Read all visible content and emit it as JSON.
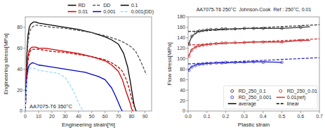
{
  "chart_data": [
    {
      "type": "line",
      "annotation": "AA7075-T6 350°C",
      "xlabel": "Engineering strain[%]",
      "ylabel": "Engineering stress[MPa]",
      "xlim": [
        0,
        95
      ],
      "ylim": [
        0,
        90
      ],
      "xticks": [
        0,
        10,
        20,
        30,
        40,
        50,
        60,
        70,
        80,
        90
      ],
      "yticks": [
        0,
        20,
        40,
        60,
        80
      ],
      "grid": false,
      "legend": "upper right",
      "series": [
        {
          "color": "#000000",
          "line_style": "solid",
          "x": [
            0,
            1,
            2,
            3,
            4,
            5,
            6,
            7,
            8,
            10,
            15,
            20,
            30,
            40,
            50,
            60,
            65,
            70,
            74,
            77,
            79,
            81,
            82,
            83,
            83.5
          ],
          "values": [
            0,
            50,
            72,
            80,
            83,
            84,
            85,
            85,
            85,
            84,
            83,
            82,
            80,
            78,
            75,
            71,
            68,
            64,
            55,
            42,
            28,
            12,
            5,
            1,
            0
          ]
        },
        {
          "color": "#555555",
          "line_style": "dashed",
          "x": [
            0,
            1,
            2,
            3,
            4,
            5,
            6,
            8,
            10,
            15,
            20,
            30,
            40,
            50,
            60,
            70,
            75,
            80,
            83,
            85,
            87,
            88,
            89,
            90,
            91
          ],
          "values": [
            0,
            45,
            65,
            74,
            78,
            80,
            81,
            82,
            82,
            81,
            80,
            79,
            77,
            75,
            72,
            68,
            65,
            61,
            57,
            52,
            47,
            44,
            41,
            38,
            35
          ]
        },
        {
          "color": "#cc0000",
          "line_style": "solid",
          "x": [
            0,
            1,
            2,
            3,
            4,
            5,
            6,
            8,
            10,
            15,
            20,
            30,
            40,
            50,
            60,
            65,
            70,
            73,
            76,
            79,
            80,
            81,
            81.5
          ],
          "values": [
            0,
            35,
            52,
            58,
            60,
            61,
            61,
            61,
            60,
            60,
            59,
            57,
            55,
            52,
            48,
            44,
            38,
            30,
            18,
            7,
            2,
            0,
            0
          ]
        },
        {
          "color": "#cc0000",
          "line_style": "dashed",
          "x": [
            0,
            1,
            2,
            3,
            4,
            5,
            6,
            8,
            10,
            15,
            20,
            30,
            40,
            50,
            60,
            65,
            70,
            73,
            76,
            78,
            80,
            82
          ],
          "values": [
            0,
            32,
            48,
            55,
            58,
            59,
            59,
            59,
            59,
            58,
            57,
            56,
            54,
            52,
            49,
            46,
            42,
            38,
            30,
            22,
            12,
            4
          ]
        },
        {
          "color": "#0000cc",
          "line_style": "solid",
          "x": [
            0,
            1,
            2,
            3,
            4,
            5,
            6,
            8,
            10,
            15,
            20,
            25,
            30,
            35,
            40,
            45,
            50,
            55,
            60,
            65,
            68,
            70,
            72,
            73
          ],
          "values": [
            0,
            28,
            40,
            44,
            45,
            46,
            46,
            45,
            44,
            43,
            42,
            41,
            40,
            39,
            38,
            37,
            35,
            33,
            30,
            22,
            14,
            8,
            2,
            0
          ]
        },
        {
          "color": "#99ddff",
          "line_style": "dashed",
          "x": [
            0,
            1,
            2,
            3,
            4,
            5,
            6,
            8,
            10,
            15,
            20,
            25,
            30,
            35,
            38,
            40,
            42,
            44
          ],
          "values": [
            0,
            25,
            36,
            40,
            41,
            41,
            41,
            40,
            39,
            38,
            37,
            36,
            32,
            22,
            14,
            8,
            3,
            0
          ]
        }
      ],
      "legend_entries": [
        {
          "label": "RD",
          "color": "#000000",
          "line_style": "solid"
        },
        {
          "label": "DD",
          "color": "#555555",
          "line_style": "dashed"
        },
        {
          "label": "0.1",
          "color": "#000000",
          "line_style": "solid"
        },
        {
          "label": "0.01",
          "color": "#cc0000",
          "line_style": "solid"
        },
        {
          "label": "0.001",
          "color": "#0000cc",
          "line_style": "solid"
        },
        {
          "label": "0.001(DD)",
          "color": "#99ddff",
          "line_style": "dashed"
        }
      ]
    },
    {
      "type": "line",
      "title": "AA7075-T6 250°C  Johnson-Cook  Ref : 250°C, 0.01",
      "xlabel": "Plastic strain",
      "ylabel": "Flow stress[MPa]",
      "xlim": [
        0,
        0.7
      ],
      "ylim": [
        0,
        180
      ],
      "xticks": [
        {
          "value": 0.0,
          "label": "0.0"
        },
        0.1,
        0.2,
        0.3,
        0.4,
        0.5,
        0.6,
        0.7
      ],
      "yticks": [
        0,
        20,
        40,
        60,
        80,
        100,
        120,
        140,
        160,
        180
      ],
      "grid": false,
      "legend": "lower right",
      "series": [
        {
          "type": "scatter",
          "marker": "circle",
          "color": "#333333",
          "x": [
            0.005,
            0.02,
            0.04,
            0.06,
            0.08,
            0.1,
            0.12,
            0.15,
            0.18,
            0.2,
            0.25,
            0.3,
            0.35,
            0.4,
            0.5,
            0.6
          ],
          "values": [
            128,
            143,
            150,
            153,
            154,
            155,
            156,
            156,
            157,
            157,
            157,
            158,
            158,
            158,
            158,
            160
          ]
        },
        {
          "type": "scatter",
          "marker": "circle",
          "color": "#cc3333",
          "x": [
            0.005,
            0.02,
            0.04,
            0.06,
            0.08,
            0.1,
            0.12,
            0.15,
            0.18,
            0.2,
            0.25,
            0.3,
            0.35,
            0.4,
            0.5,
            0.6
          ],
          "values": [
            105,
            116,
            122,
            125,
            126,
            127,
            128,
            129,
            130,
            130,
            131,
            131,
            132,
            132,
            132,
            135
          ]
        },
        {
          "type": "scatter",
          "marker": "circle",
          "color": "#3333cc",
          "x": [
            0.005,
            0.02,
            0.04,
            0.06,
            0.08,
            0.1,
            0.12,
            0.15,
            0.18,
            0.2,
            0.25,
            0.3,
            0.35,
            0.4,
            0.5
          ],
          "values": [
            78,
            84,
            87,
            89,
            90,
            91,
            91,
            92,
            92,
            93,
            93,
            94,
            94,
            93,
            93
          ]
        },
        {
          "type": "line",
          "line_style": "solid",
          "color": "#333333",
          "x": [
            0.0,
            0.005,
            0.02,
            0.05,
            0.1,
            0.15,
            0.2,
            0.25,
            0.3,
            0.35,
            0.4,
            0.5,
            0.6,
            0.65
          ],
          "values": [
            126,
            130,
            143,
            151,
            155,
            156,
            157,
            157,
            158,
            158,
            158,
            158,
            160,
            161
          ]
        },
        {
          "type": "line",
          "line_style": "solid",
          "color": "#cc3333",
          "x": [
            0.0,
            0.005,
            0.02,
            0.05,
            0.1,
            0.15,
            0.2,
            0.25,
            0.3,
            0.35,
            0.4,
            0.5,
            0.6,
            0.65
          ],
          "values": [
            103,
            107,
            118,
            124,
            127,
            129,
            130,
            130,
            131,
            132,
            132,
            132,
            135,
            135
          ]
        },
        {
          "type": "line",
          "line_style": "solid",
          "color": "#3333cc",
          "x": [
            0.0,
            0.005,
            0.02,
            0.05,
            0.1,
            0.15,
            0.2,
            0.25,
            0.3,
            0.35,
            0.4,
            0.5
          ],
          "values": [
            76,
            80,
            85,
            89,
            91,
            92,
            92,
            93,
            93,
            94,
            94,
            93
          ]
        },
        {
          "type": "line",
          "line_style": "dashed",
          "color": "#333333",
          "x": [
            0.0,
            0.7
          ],
          "values": [
            152,
            165
          ]
        },
        {
          "type": "line",
          "line_style": "dashed",
          "color": "#cc3333",
          "x": [
            0.0,
            0.7
          ],
          "values": [
            126,
            138
          ]
        },
        {
          "type": "line",
          "line_style": "dashed",
          "color": "#3333cc",
          "x": [
            0.0,
            0.7
          ],
          "values": [
            90,
            102
          ]
        }
      ],
      "legend_entries": [
        {
          "label": "RD_250_0.1",
          "color": "#333333",
          "marker": "circle"
        },
        {
          "label": "RD_250_0.01",
          "color": "#cc3333",
          "marker": "circle"
        },
        {
          "label": "RD_250_0.001",
          "color": "#3333cc",
          "marker": "circle"
        },
        {
          "label": "0.01(ref)",
          "color": "#cc3333",
          "line_style": "solid"
        },
        {
          "label": "average",
          "color": "#000000",
          "line_style": "solid"
        },
        {
          "label": "linear",
          "color": "#000000",
          "line_style": "dashed"
        }
      ]
    }
  ]
}
